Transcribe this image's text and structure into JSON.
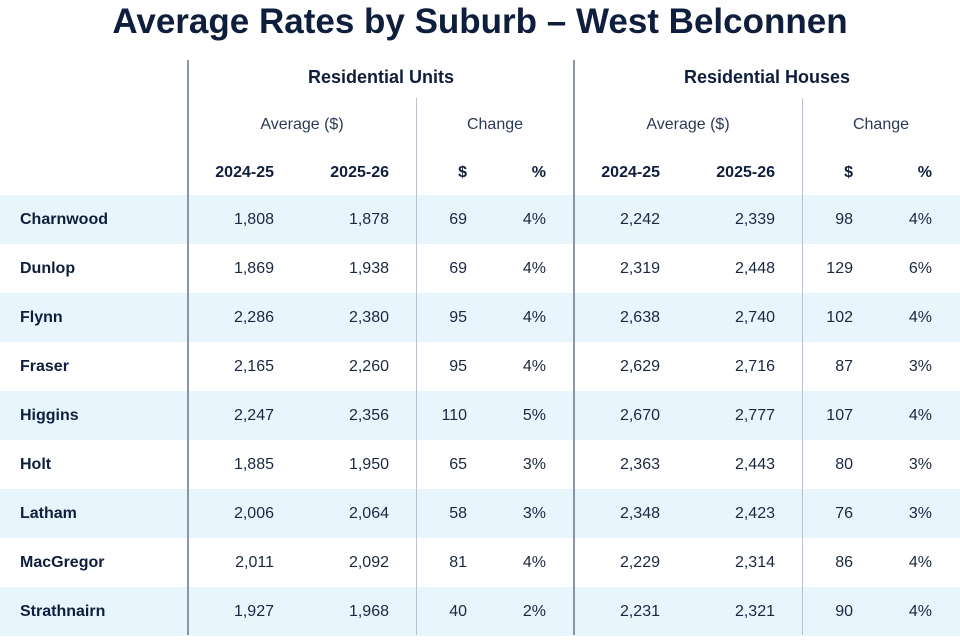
{
  "chart_data": {
    "type": "table",
    "title": "Average Rates by Suburb – West Belconnen",
    "groups": [
      "Residential Units",
      "Residential Houses"
    ],
    "subgroups": [
      "Average ($)",
      "Change"
    ],
    "columns": [
      "2024-25",
      "2025-26",
      "$",
      "%",
      "2024-25",
      "2025-26",
      "$",
      "%"
    ],
    "rows": [
      {
        "suburb": "Charnwood",
        "values": [
          "1,808",
          "1,878",
          "69",
          "4%",
          "2,242",
          "2,339",
          "98",
          "4%"
        ]
      },
      {
        "suburb": "Dunlop",
        "values": [
          "1,869",
          "1,938",
          "69",
          "4%",
          "2,319",
          "2,448",
          "129",
          "6%"
        ]
      },
      {
        "suburb": "Flynn",
        "values": [
          "2,286",
          "2,380",
          "95",
          "4%",
          "2,638",
          "2,740",
          "102",
          "4%"
        ]
      },
      {
        "suburb": "Fraser",
        "values": [
          "2,165",
          "2,260",
          "95",
          "4%",
          "2,629",
          "2,716",
          "87",
          "3%"
        ]
      },
      {
        "suburb": "Higgins",
        "values": [
          "2,247",
          "2,356",
          "110",
          "5%",
          "2,670",
          "2,777",
          "107",
          "4%"
        ]
      },
      {
        "suburb": "Holt",
        "values": [
          "1,885",
          "1,950",
          "65",
          "3%",
          "2,363",
          "2,443",
          "80",
          "3%"
        ]
      },
      {
        "suburb": "Latham",
        "values": [
          "2,006",
          "2,064",
          "58",
          "3%",
          "2,348",
          "2,423",
          "76",
          "3%"
        ]
      },
      {
        "suburb": "MacGregor",
        "values": [
          "2,011",
          "2,092",
          "81",
          "4%",
          "2,229",
          "2,314",
          "86",
          "4%"
        ]
      },
      {
        "suburb": "Strathnairn",
        "values": [
          "1,927",
          "1,968",
          "40",
          "2%",
          "2,231",
          "2,321",
          "90",
          "4%"
        ]
      }
    ]
  },
  "colors": {
    "text": "#0f1e3c",
    "row_shade": "#e8f5fd",
    "divider": "#8a96a8"
  }
}
